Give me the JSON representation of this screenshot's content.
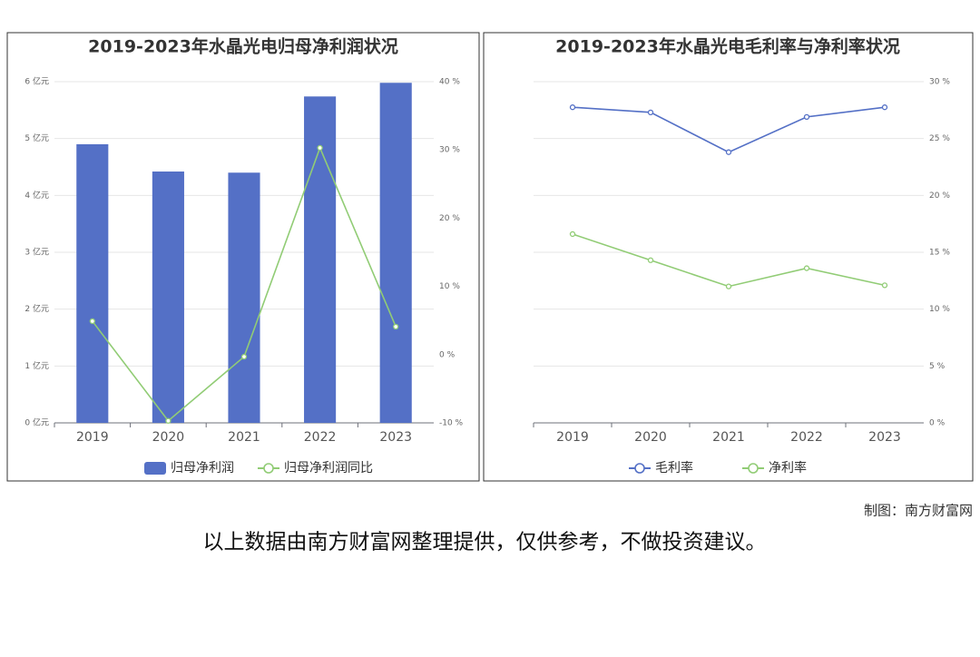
{
  "chart_data": [
    {
      "type": "bar",
      "title": "2019-2023年水晶光电归母净利润状况",
      "categories": [
        "2019",
        "2020",
        "2021",
        "2022",
        "2023"
      ],
      "series": [
        {
          "name": "归母净利润",
          "type": "bar",
          "color": "#5470c6",
          "values": [
            4.9,
            4.42,
            4.4,
            5.74,
            5.98
          ]
        },
        {
          "name": "归母净利润同比",
          "type": "line",
          "axis": "y2",
          "color": "#91cc75",
          "values": [
            4.9,
            -9.7,
            -0.3,
            30.3,
            4.1
          ]
        }
      ],
      "ylim": [
        0,
        6
      ],
      "yticks": [
        {
          "value": 0,
          "label": "0 亿元"
        },
        {
          "value": 1,
          "label": "1 亿元"
        },
        {
          "value": 2,
          "label": "2 亿元"
        },
        {
          "value": 3,
          "label": "3 亿元"
        },
        {
          "value": 4,
          "label": "4 亿元"
        },
        {
          "value": 5,
          "label": "5 亿元"
        },
        {
          "value": 6,
          "label": "6 亿元"
        }
      ],
      "y2lim": [
        -10,
        40
      ],
      "y2ticks": [
        {
          "value": -10,
          "label": "-10 %"
        },
        {
          "value": 0,
          "label": "0 %"
        },
        {
          "value": 10,
          "label": "10 %"
        },
        {
          "value": 20,
          "label": "20 %"
        },
        {
          "value": 30,
          "label": "30 %"
        },
        {
          "value": 40,
          "label": "40 %"
        }
      ],
      "grid": true
    },
    {
      "type": "line",
      "title": "2019-2023年水晶光电毛利率与净利率状况",
      "categories": [
        "2019",
        "2020",
        "2021",
        "2022",
        "2023"
      ],
      "series": [
        {
          "name": "毛利率",
          "type": "line",
          "axis": "y2",
          "color": "#5470c6",
          "values": [
            27.75,
            27.3,
            23.8,
            26.9,
            27.75
          ]
        },
        {
          "name": "净利率",
          "type": "line",
          "axis": "y2",
          "color": "#91cc75",
          "values": [
            16.6,
            14.3,
            12.0,
            13.6,
            12.1
          ]
        }
      ],
      "y2lim": [
        0,
        30
      ],
      "y2ticks": [
        {
          "value": 0,
          "label": "0 %"
        },
        {
          "value": 5,
          "label": "5 %"
        },
        {
          "value": 10,
          "label": "10 %"
        },
        {
          "value": 15,
          "label": "15 %"
        },
        {
          "value": 20,
          "label": "20 %"
        },
        {
          "value": 25,
          "label": "25 %"
        },
        {
          "value": 30,
          "label": "30 %"
        }
      ],
      "grid": true
    }
  ],
  "credit": "制图：南方财富网",
  "caption": "以上数据由南方财富网整理提供，仅供参考，不做投资建议。"
}
